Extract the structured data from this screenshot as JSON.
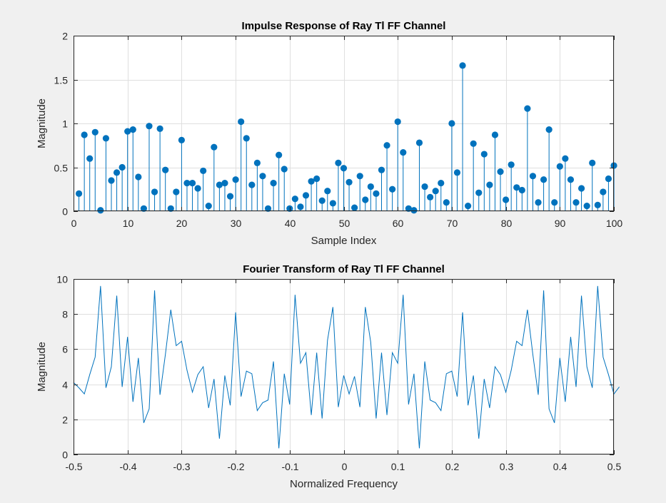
{
  "chart_data": [
    {
      "type": "stem",
      "title": "Impulse Response of Ray Tl FF Channel",
      "xlabel": "Sample Index",
      "ylabel": "Magnitude",
      "xlim": [
        0,
        100
      ],
      "ylim": [
        0,
        2
      ],
      "xticks": [
        0,
        10,
        20,
        30,
        40,
        50,
        60,
        70,
        80,
        90,
        100
      ],
      "yticks": [
        0,
        0.5,
        1,
        1.5,
        2
      ],
      "ytick_labels": [
        "0",
        "0.5",
        "1",
        "1.5",
        "2"
      ],
      "grid": true,
      "color": "#0072bd",
      "x": [
        1,
        2,
        3,
        4,
        5,
        6,
        7,
        8,
        9,
        10,
        11,
        12,
        13,
        14,
        15,
        16,
        17,
        18,
        19,
        20,
        21,
        22,
        23,
        24,
        25,
        26,
        27,
        28,
        29,
        30,
        31,
        32,
        33,
        34,
        35,
        36,
        37,
        38,
        39,
        40,
        41,
        42,
        43,
        44,
        45,
        46,
        47,
        48,
        49,
        50,
        51,
        52,
        53,
        54,
        55,
        56,
        57,
        58,
        59,
        60,
        61,
        62,
        63,
        64,
        65,
        66,
        67,
        68,
        69,
        70,
        71,
        72,
        73,
        74,
        75,
        76,
        77,
        78,
        79,
        80,
        81,
        82,
        83,
        84,
        85,
        86,
        87,
        88,
        89,
        90,
        91,
        92,
        93,
        94,
        95,
        96,
        97,
        98,
        99,
        100
      ],
      "values": [
        0.2,
        0.87,
        0.6,
        0.9,
        0.01,
        0.83,
        0.35,
        0.44,
        0.5,
        0.91,
        0.93,
        0.39,
        0.03,
        0.97,
        0.22,
        0.94,
        0.47,
        0.03,
        0.22,
        0.81,
        0.32,
        0.32,
        0.26,
        0.46,
        0.06,
        0.73,
        0.3,
        0.32,
        0.17,
        0.36,
        1.02,
        0.83,
        0.3,
        0.55,
        0.4,
        0.03,
        0.32,
        0.64,
        0.48,
        0.03,
        0.14,
        0.05,
        0.18,
        0.34,
        0.37,
        0.12,
        0.23,
        0.09,
        0.55,
        0.49,
        0.33,
        0.04,
        0.4,
        0.13,
        0.28,
        0.2,
        0.47,
        0.75,
        0.25,
        1.02,
        0.67,
        0.03,
        0.01,
        0.78,
        0.28,
        0.16,
        0.23,
        0.32,
        0.1,
        1.0,
        0.44,
        1.66,
        0.06,
        0.77,
        0.21,
        0.65,
        0.3,
        0.87,
        0.45,
        0.13,
        0.53,
        0.27,
        0.24,
        1.17,
        0.4,
        0.1,
        0.36,
        0.93,
        0.1,
        0.51,
        0.6,
        0.36,
        0.1,
        0.26,
        0.06,
        0.55,
        0.07,
        0.22,
        0.37,
        0.52
      ]
    },
    {
      "type": "line",
      "title": "Fourier Transform of Ray Tl FF Channel",
      "xlabel": "Normalized Frequency",
      "ylabel": "Magnitude",
      "xlim": [
        -0.5,
        0.5
      ],
      "ylim": [
        0,
        10
      ],
      "xticks": [
        -0.5,
        -0.4,
        -0.3,
        -0.2,
        -0.1,
        0,
        0.1,
        0.2,
        0.3,
        0.4,
        0.5
      ],
      "xtick_labels": [
        "-0.5",
        "-0.4",
        "-0.3",
        "-0.2",
        "-0.1",
        "0",
        "0.1",
        "0.2",
        "0.3",
        "0.4",
        "0.5"
      ],
      "yticks": [
        0,
        2,
        4,
        6,
        8,
        10
      ],
      "grid": true,
      "color": "#0072bd",
      "x_start": -0.5,
      "x_step": 0.01,
      "values": [
        4.1,
        3.8,
        3.45,
        4.55,
        5.55,
        9.6,
        3.8,
        5.0,
        9.05,
        3.85,
        6.7,
        3.0,
        5.5,
        1.8,
        2.6,
        9.35,
        3.4,
        5.7,
        8.25,
        6.2,
        6.45,
        4.8,
        3.55,
        4.55,
        5.0,
        2.65,
        4.3,
        0.9,
        4.5,
        2.8,
        8.1,
        3.3,
        4.75,
        4.6,
        2.5,
        2.95,
        3.1,
        5.3,
        0.35,
        4.6,
        2.85,
        9.1,
        5.2,
        5.8,
        2.25,
        5.8,
        2.05,
        6.5,
        8.4,
        2.7,
        4.5,
        3.45,
        4.45,
        2.7,
        8.4,
        6.4,
        2.05,
        5.8,
        2.25,
        5.8,
        5.2,
        9.1,
        2.85,
        4.6,
        0.35,
        5.3,
        3.1,
        2.95,
        2.5,
        4.6,
        4.75,
        3.3,
        8.1,
        2.8,
        4.5,
        0.9,
        4.3,
        2.65,
        5.0,
        4.55,
        3.55,
        4.8,
        6.45,
        6.2,
        8.25,
        5.7,
        3.4,
        9.35,
        2.6,
        1.8,
        5.5,
        3.0,
        6.7,
        3.85,
        9.05,
        5.0,
        3.8,
        9.6,
        5.55,
        4.55,
        3.45,
        3.85
      ]
    }
  ]
}
